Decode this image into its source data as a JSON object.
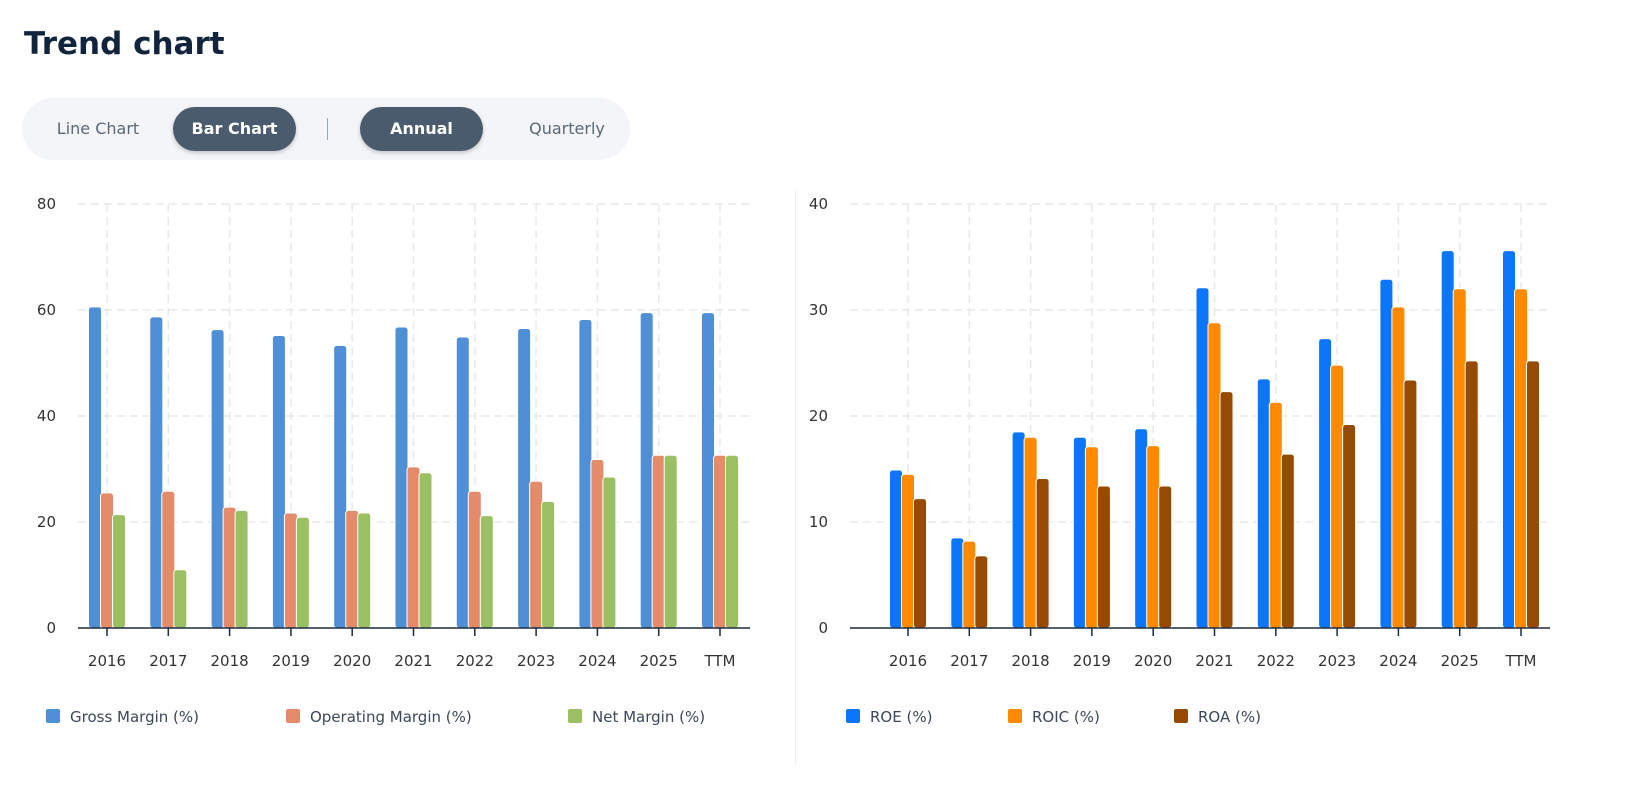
{
  "header": {
    "title": "Trend chart"
  },
  "toggle": {
    "chart_types": [
      "Line Chart",
      "Bar Chart"
    ],
    "active_chart_type": "Bar Chart",
    "periods": [
      "Annual",
      "Quarterly"
    ],
    "active_period": "Annual"
  },
  "chart_data": [
    {
      "type": "bar",
      "categories": [
        "2016",
        "2017",
        "2018",
        "2019",
        "2020",
        "2021",
        "2022",
        "2023",
        "2024",
        "2025",
        "TTM"
      ],
      "ylim": [
        0,
        80
      ],
      "yticks": [
        0,
        20,
        40,
        60,
        80
      ],
      "grid": true,
      "legend": "bottom",
      "series": [
        {
          "name": "Gross Margin (%)",
          "color": "#4e8fd6",
          "values": [
            60.6,
            58.7,
            56.3,
            55.2,
            53.3,
            56.8,
            54.9,
            56.5,
            58.2,
            59.5,
            59.5
          ]
        },
        {
          "name": "Operating Margin (%)",
          "color": "#e48c6a",
          "values": [
            25.5,
            25.8,
            22.8,
            21.7,
            22.2,
            30.4,
            25.8,
            27.7,
            31.8,
            32.6,
            32.6
          ]
        },
        {
          "name": "Net Margin (%)",
          "color": "#9bbf63",
          "values": [
            21.4,
            11.0,
            22.2,
            20.9,
            21.7,
            29.3,
            21.2,
            23.9,
            28.5,
            32.6,
            32.6
          ]
        }
      ]
    },
    {
      "type": "bar",
      "categories": [
        "2016",
        "2017",
        "2018",
        "2019",
        "2020",
        "2021",
        "2022",
        "2023",
        "2024",
        "2025",
        "TTM"
      ],
      "ylim": [
        0,
        40
      ],
      "yticks": [
        0,
        10,
        20,
        30,
        40
      ],
      "grid": true,
      "legend": "bottom",
      "series": [
        {
          "name": "ROE (%)",
          "color": "#0a77fb",
          "values": [
            14.9,
            8.5,
            18.5,
            18.0,
            18.8,
            32.1,
            23.5,
            27.3,
            32.9,
            35.6,
            35.6
          ]
        },
        {
          "name": "ROIC (%)",
          "color": "#ff8a00",
          "values": [
            14.5,
            8.2,
            18.0,
            17.1,
            17.2,
            28.8,
            21.3,
            24.8,
            30.3,
            32.0,
            32.0
          ]
        },
        {
          "name": "ROA (%)",
          "color": "#974b00",
          "values": [
            12.2,
            6.8,
            14.1,
            13.4,
            13.4,
            22.3,
            16.4,
            19.2,
            23.4,
            25.2,
            25.2
          ]
        }
      ]
    }
  ]
}
